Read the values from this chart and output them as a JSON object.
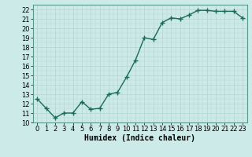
{
  "x": [
    0,
    1,
    2,
    3,
    4,
    5,
    6,
    7,
    8,
    9,
    10,
    11,
    12,
    13,
    14,
    15,
    16,
    17,
    18,
    19,
    20,
    21,
    22,
    23
  ],
  "y": [
    12.5,
    11.5,
    10.5,
    11.0,
    11.0,
    12.2,
    11.4,
    11.5,
    13.0,
    13.2,
    14.8,
    16.6,
    19.0,
    18.8,
    20.6,
    21.1,
    21.0,
    21.4,
    21.9,
    21.9,
    21.8,
    21.8,
    21.8,
    21.1
  ],
  "line_color": "#1a6b5a",
  "marker": "+",
  "marker_size": 4,
  "bg_color": "#cceae7",
  "grid_color": "#b0d8d4",
  "xlabel": "Humidex (Indice chaleur)",
  "ylim": [
    10,
    22.5
  ],
  "yticks": [
    10,
    11,
    12,
    13,
    14,
    15,
    16,
    17,
    18,
    19,
    20,
    21,
    22
  ],
  "xlim": [
    -0.5,
    23.5
  ],
  "xticks": [
    0,
    1,
    2,
    3,
    4,
    5,
    6,
    7,
    8,
    9,
    10,
    11,
    12,
    13,
    14,
    15,
    16,
    17,
    18,
    19,
    20,
    21,
    22,
    23
  ],
  "xlabel_fontsize": 7,
  "tick_fontsize": 6,
  "line_width": 1.0
}
